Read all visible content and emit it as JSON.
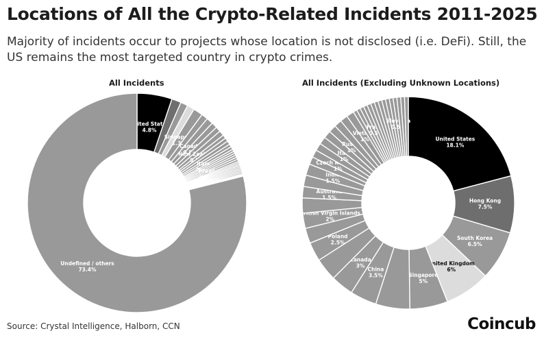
{
  "header": {
    "title": "Locations of All the Crypto-Related Incidents 2011-2025",
    "subtitle": "Majority of incidents occur to projects whose location is not disclosed (i.e. DeFi). Still, the US remains the most targeted country in crypto crimes."
  },
  "chart_data": [
    {
      "type": "pie",
      "title": "All Incidents",
      "unit": "%",
      "slices": [
        {
          "label": "United States",
          "display": "4.8%",
          "value": 4.8,
          "color": "#000000",
          "label_color": "#ffffff"
        },
        {
          "label": "",
          "display": "",
          "value": 1.3,
          "color": "#6e6e6e"
        },
        {
          "label": "",
          "display": "",
          "value": 1.0,
          "color": "#999999"
        },
        {
          "label": "",
          "display": "",
          "value": 1.0,
          "color": "#dcdcdc"
        },
        {
          "label": "Singapore",
          "display": "1.3%",
          "value": 1.3,
          "color": "#999999",
          "label_color": "#ffffff"
        },
        {
          "label": "",
          "display": "",
          "value": 0.9,
          "color": "#999999"
        },
        {
          "label": "",
          "display": "",
          "value": 0.9,
          "color": "#999999"
        },
        {
          "label": "Canada",
          "display": "0.8%",
          "value": 0.8,
          "color": "#999999",
          "label_color": "#ffffff"
        },
        {
          "label": "",
          "display": "",
          "value": 0.7,
          "color": "#999999"
        },
        {
          "label": "",
          "display": "",
          "value": 0.7,
          "color": "#999999"
        },
        {
          "label": "New Zealand",
          "display": "0.5%",
          "value": 0.5,
          "color": "#999999",
          "label_color": "#ffffff"
        },
        {
          "label": "",
          "display": "",
          "value": 0.5,
          "color": "#999999"
        },
        {
          "label": "",
          "display": "",
          "value": 0.5,
          "color": "#999999"
        },
        {
          "label": "",
          "display": "",
          "value": 0.4,
          "color": "#999999"
        },
        {
          "label": "",
          "display": "",
          "value": 0.4,
          "color": "#999999"
        },
        {
          "label": "Italy",
          "display": "0.3%",
          "value": 0.3,
          "color": "#999999",
          "label_color": "#ffffff"
        },
        {
          "label": "",
          "display": "",
          "value": 0.3,
          "color": "#999999"
        },
        {
          "label": "",
          "display": "",
          "value": 0.3,
          "color": "#999999"
        },
        {
          "label": "",
          "display": "",
          "value": 0.3,
          "color": "#999999"
        },
        {
          "label": "",
          "display": "",
          "value": 0.3,
          "color": "#999999"
        },
        {
          "label": "Brazil",
          "display": "0.3%",
          "value": 0.3,
          "color": "#999999",
          "label_color": "#ffffff"
        },
        {
          "label": "",
          "display": "",
          "value": 0.2,
          "color": "#999999"
        },
        {
          "label": "",
          "display": "",
          "value": 0.2,
          "color": "#999999"
        },
        {
          "label": "",
          "display": "",
          "value": 0.2,
          "color": "#999999"
        },
        {
          "label": "",
          "display": "",
          "value": 0.2,
          "color": "#999999"
        },
        {
          "label": "",
          "display": "",
          "value": 0.2,
          "color": "#999999"
        },
        {
          "label": "",
          "display": "",
          "value": 0.2,
          "color": "#999999"
        },
        {
          "label": "",
          "display": "",
          "value": 0.2,
          "color": "#999999"
        },
        {
          "label": "",
          "display": "",
          "value": 0.2,
          "color": "#999999"
        },
        {
          "label": "",
          "display": "",
          "value": 0.2,
          "color": "#999999"
        },
        {
          "label": "Ukraine",
          "display": "0.1%",
          "value": 0.1,
          "color": "#999999",
          "label_color": "#ffffff"
        },
        {
          "label": "",
          "display": "",
          "value": 0.1,
          "color": "#999999"
        },
        {
          "label": "",
          "display": "",
          "value": 0.1,
          "color": "#999999"
        },
        {
          "label": "Undefined / others",
          "display": "73.4%",
          "value": 73.4,
          "color": "#999999",
          "label_color": "#ffffff"
        }
      ]
    },
    {
      "type": "pie",
      "title": "All Incidents (Excluding Unknown Locations)",
      "unit": "%",
      "slices": [
        {
          "label": "United States",
          "display": "18.1%",
          "value": 18.1,
          "color": "#000000",
          "label_color": "#ffffff"
        },
        {
          "label": "Hong Kong",
          "display": "7.5%",
          "value": 7.5,
          "color": "#6e6e6e",
          "label_color": "#ffffff"
        },
        {
          "label": "South Korea",
          "display": "6.5%",
          "value": 6.5,
          "color": "#999999",
          "label_color": "#ffffff"
        },
        {
          "label": "United Kingdom",
          "display": "6%",
          "value": 6.0,
          "color": "#dcdcdc",
          "label_color": "#111111"
        },
        {
          "label": "Singapore",
          "display": "5%",
          "value": 5.0,
          "color": "#999999",
          "label_color": "#ffffff"
        },
        {
          "label": "",
          "display": "",
          "value": 4.5,
          "color": "#999999"
        },
        {
          "label": "China",
          "display": "3.5%",
          "value": 3.5,
          "color": "#999999",
          "label_color": "#ffffff"
        },
        {
          "label": "Canada",
          "display": "3%",
          "value": 3.0,
          "color": "#999999",
          "label_color": "#ffffff"
        },
        {
          "label": "",
          "display": "",
          "value": 3.0,
          "color": "#999999"
        },
        {
          "label": "Poland",
          "display": "2.5%",
          "value": 2.5,
          "color": "#999999",
          "label_color": "#ffffff"
        },
        {
          "label": "",
          "display": "",
          "value": 2.0,
          "color": "#999999"
        },
        {
          "label": "British Virgin Islands",
          "display": "2%",
          "value": 2.0,
          "color": "#999999",
          "label_color": "#ffffff"
        },
        {
          "label": "",
          "display": "",
          "value": 2.0,
          "color": "#999999"
        },
        {
          "label": "Australia",
          "display": "1.5%",
          "value": 1.5,
          "color": "#999999",
          "label_color": "#ffffff"
        },
        {
          "label": "",
          "display": "",
          "value": 1.5,
          "color": "#999999"
        },
        {
          "label": "India",
          "display": "1.5%",
          "value": 1.5,
          "color": "#999999",
          "label_color": "#ffffff"
        },
        {
          "label": "",
          "display": "",
          "value": 1.0,
          "color": "#999999"
        },
        {
          "label": "Czech Republic",
          "display": "1%",
          "value": 1.0,
          "color": "#999999",
          "label_color": "#ffffff"
        },
        {
          "label": "",
          "display": "",
          "value": 1.0,
          "color": "#999999"
        },
        {
          "label": "Italy",
          "display": "1%",
          "value": 1.0,
          "color": "#999999",
          "label_color": "#ffffff"
        },
        {
          "label": "",
          "display": "",
          "value": 1.0,
          "color": "#999999"
        },
        {
          "label": "Russia",
          "display": "1%",
          "value": 1.0,
          "color": "#999999",
          "label_color": "#ffffff"
        },
        {
          "label": "",
          "display": "",
          "value": 1.0,
          "color": "#999999"
        },
        {
          "label": "",
          "display": "",
          "value": 1.0,
          "color": "#999999"
        },
        {
          "label": "Vietnam",
          "display": "1%",
          "value": 1.0,
          "color": "#999999",
          "label_color": "#ffffff"
        },
        {
          "label": "",
          "display": "",
          "value": 0.5,
          "color": "#999999"
        },
        {
          "label": "",
          "display": "",
          "value": 0.5,
          "color": "#999999"
        },
        {
          "label": "",
          "display": "",
          "value": 0.5,
          "color": "#999999"
        },
        {
          "label": "France",
          "display": "0.5%",
          "value": 0.5,
          "color": "#999999",
          "label_color": "#ffffff"
        },
        {
          "label": "",
          "display": "",
          "value": 0.5,
          "color": "#999999"
        },
        {
          "label": "",
          "display": "",
          "value": 0.5,
          "color": "#999999"
        },
        {
          "label": "",
          "display": "",
          "value": 0.5,
          "color": "#999999"
        },
        {
          "label": "",
          "display": "",
          "value": 0.5,
          "color": "#999999"
        },
        {
          "label": "",
          "display": "",
          "value": 0.5,
          "color": "#999999"
        },
        {
          "label": "",
          "display": "",
          "value": 0.5,
          "color": "#999999"
        },
        {
          "label": "",
          "display": "",
          "value": 0.5,
          "color": "#999999"
        },
        {
          "label": "Slovakia",
          "display": "0.5%",
          "value": 0.5,
          "color": "#999999",
          "label_color": "#ffffff"
        },
        {
          "label": "",
          "display": "",
          "value": 0.5,
          "color": "#999999"
        },
        {
          "label": "",
          "display": "",
          "value": 0.5,
          "color": "#999999"
        },
        {
          "label": "",
          "display": "",
          "value": 0.5,
          "color": "#999999"
        }
      ]
    }
  ],
  "footer": {
    "source": "Source: Crystal Intelligence, Halborn, CCN",
    "brand": "Coincub"
  }
}
